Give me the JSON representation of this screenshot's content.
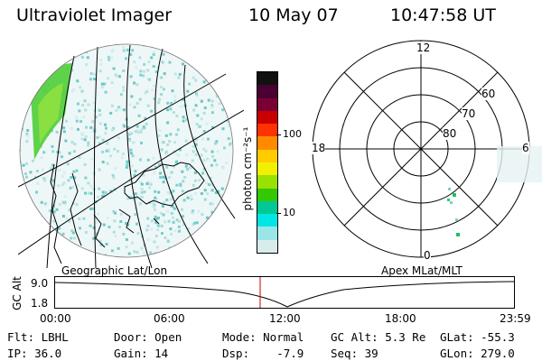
{
  "header": {
    "instrument": "Ultraviolet Imager",
    "date": "10 May 07",
    "time": "10:47:58 UT"
  },
  "colorbar": {
    "unit_label": "photon cm⁻²s⁻¹",
    "ticks": [
      "100",
      "10"
    ],
    "colors": [
      "#111111",
      "#4b0033",
      "#7a0033",
      "#c80000",
      "#ff3300",
      "#ff8a00",
      "#ffcc00",
      "#f0f000",
      "#9ae000",
      "#33c800",
      "#00c896",
      "#00e6e6",
      "#9ae6e6",
      "#d8ecec"
    ]
  },
  "left_map": {
    "label": "Geographic Lat/Lon"
  },
  "right_map": {
    "label": "Apex MLat/MLT",
    "mlt_labels": {
      "top": "12",
      "left": "18",
      "right": "6",
      "bottom": "0"
    },
    "lat_labels": [
      "60",
      "70",
      "80"
    ]
  },
  "altitude_plot": {
    "ylabel": "GC Alt",
    "yticks": [
      "9.0",
      "1.8"
    ],
    "xticks": [
      "00:00",
      "06:00",
      "12:00",
      "18:00",
      "23:59"
    ],
    "marker_color": "#c80000"
  },
  "status": {
    "flt": "Flt: LBHL",
    "ip": "IP: 36.0",
    "door": "Door: Open",
    "gain": "Gain: 14",
    "mode": "Mode: Normal",
    "dsp": "Dsp:    -7.9",
    "gc_alt": "GC Alt: 5.3 Re",
    "seq": "Seq: 39",
    "glat": "GLat: -55.3",
    "glon": "GLon: 279.0"
  }
}
